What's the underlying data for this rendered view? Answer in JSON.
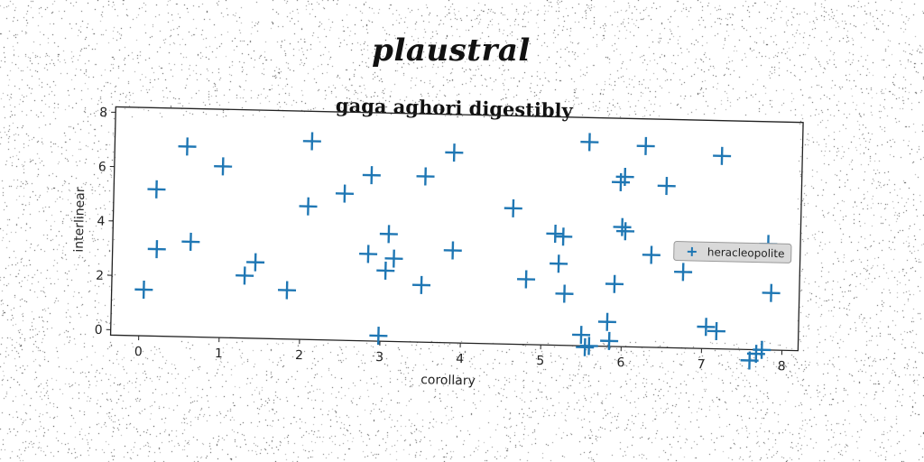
{
  "header": {
    "suptitle": "plaustral"
  },
  "chart_data": {
    "type": "scatter",
    "title": "gaga aghori digestibly",
    "xlabel": "corollary",
    "ylabel": "interlinear",
    "xlim": [
      -0.35,
      8.2
    ],
    "ylim": [
      -0.2,
      8.2
    ],
    "xticks": [
      0,
      1,
      2,
      3,
      4,
      5,
      6,
      7,
      8
    ],
    "yticks": [
      0,
      2,
      4,
      6,
      8
    ],
    "grid": false,
    "legend_position": "center-right",
    "marker": "plus",
    "series": [
      {
        "name": "heracleopolite",
        "color": "#1f77b4",
        "points": [
          [
            0.05,
            1.5
          ],
          [
            0.18,
            5.2
          ],
          [
            0.2,
            3.0
          ],
          [
            0.55,
            6.8
          ],
          [
            0.62,
            3.3
          ],
          [
            1.0,
            6.1
          ],
          [
            1.3,
            2.1
          ],
          [
            1.43,
            2.6
          ],
          [
            1.83,
            1.6
          ],
          [
            2.07,
            4.7
          ],
          [
            2.1,
            7.1
          ],
          [
            2.52,
            5.2
          ],
          [
            2.83,
            3.0
          ],
          [
            2.85,
            5.9
          ],
          [
            2.98,
            0.0
          ],
          [
            3.05,
            2.4
          ],
          [
            3.08,
            3.75
          ],
          [
            3.15,
            2.85
          ],
          [
            3.5,
            1.9
          ],
          [
            3.52,
            5.9
          ],
          [
            3.87,
            6.8
          ],
          [
            3.88,
            3.2
          ],
          [
            4.62,
            4.8
          ],
          [
            4.8,
            2.2
          ],
          [
            5.15,
            3.9
          ],
          [
            5.2,
            2.8
          ],
          [
            5.25,
            3.8
          ],
          [
            5.28,
            1.7
          ],
          [
            5.55,
            7.3
          ],
          [
            5.5,
            0.2
          ],
          [
            5.55,
            -0.25
          ],
          [
            5.6,
            -0.2
          ],
          [
            5.82,
            0.7
          ],
          [
            5.85,
            0.0
          ],
          [
            5.9,
            2.1
          ],
          [
            5.95,
            5.85
          ],
          [
            6.0,
            6.05
          ],
          [
            5.98,
            4.2
          ],
          [
            6.02,
            4.05
          ],
          [
            6.25,
            7.2
          ],
          [
            6.35,
            3.2
          ],
          [
            6.52,
            5.75
          ],
          [
            6.75,
            2.6
          ],
          [
            7.05,
            0.6
          ],
          [
            7.18,
            0.45
          ],
          [
            7.2,
            6.9
          ],
          [
            7.6,
            -0.6
          ],
          [
            7.68,
            -0.35
          ],
          [
            7.75,
            -0.2
          ],
          [
            7.8,
            3.7
          ],
          [
            7.85,
            1.9
          ]
        ]
      }
    ]
  }
}
